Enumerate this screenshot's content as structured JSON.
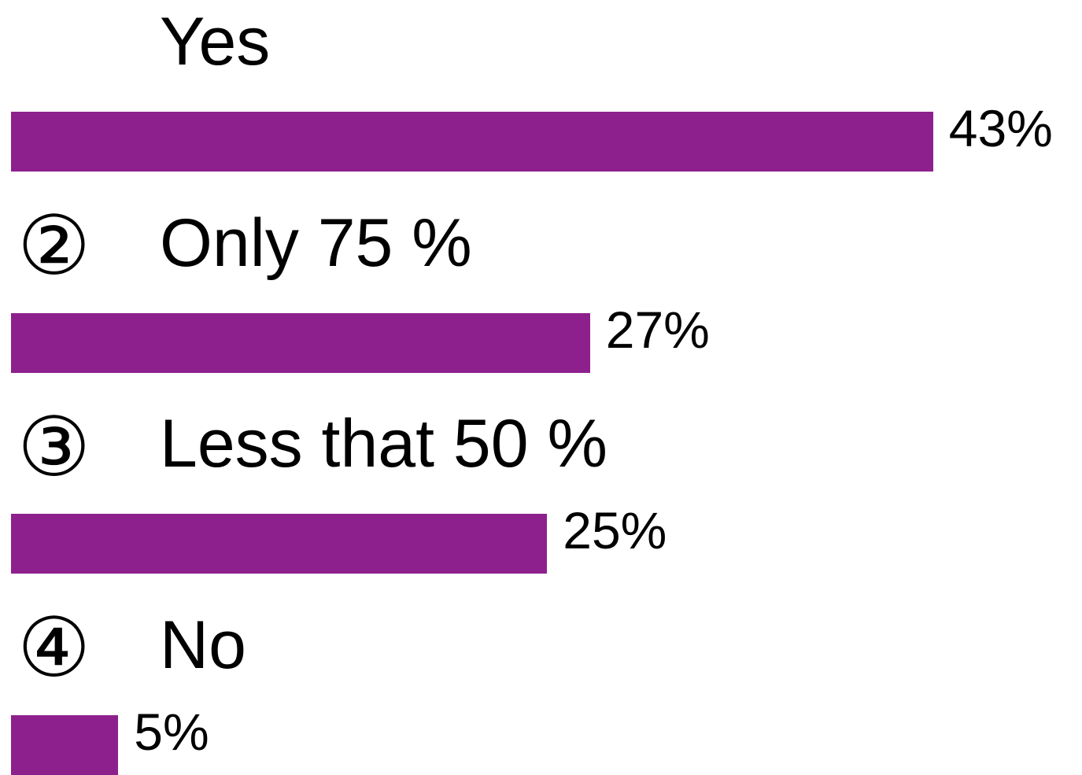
{
  "chart_data": {
    "type": "bar",
    "orientation": "horizontal",
    "bar_color": "#8e208e",
    "categories": [
      {
        "marker": "",
        "label": "Yes",
        "value": 43,
        "value_label": "43%"
      },
      {
        "marker": "②",
        "label": "Only 75 %",
        "value": 27,
        "value_label": "27%"
      },
      {
        "marker": "③",
        "label": "Less that 50 %",
        "value": 25,
        "value_label": "25%"
      },
      {
        "marker": "④",
        "label": "No",
        "value": 5,
        "value_label": "5%"
      }
    ]
  }
}
